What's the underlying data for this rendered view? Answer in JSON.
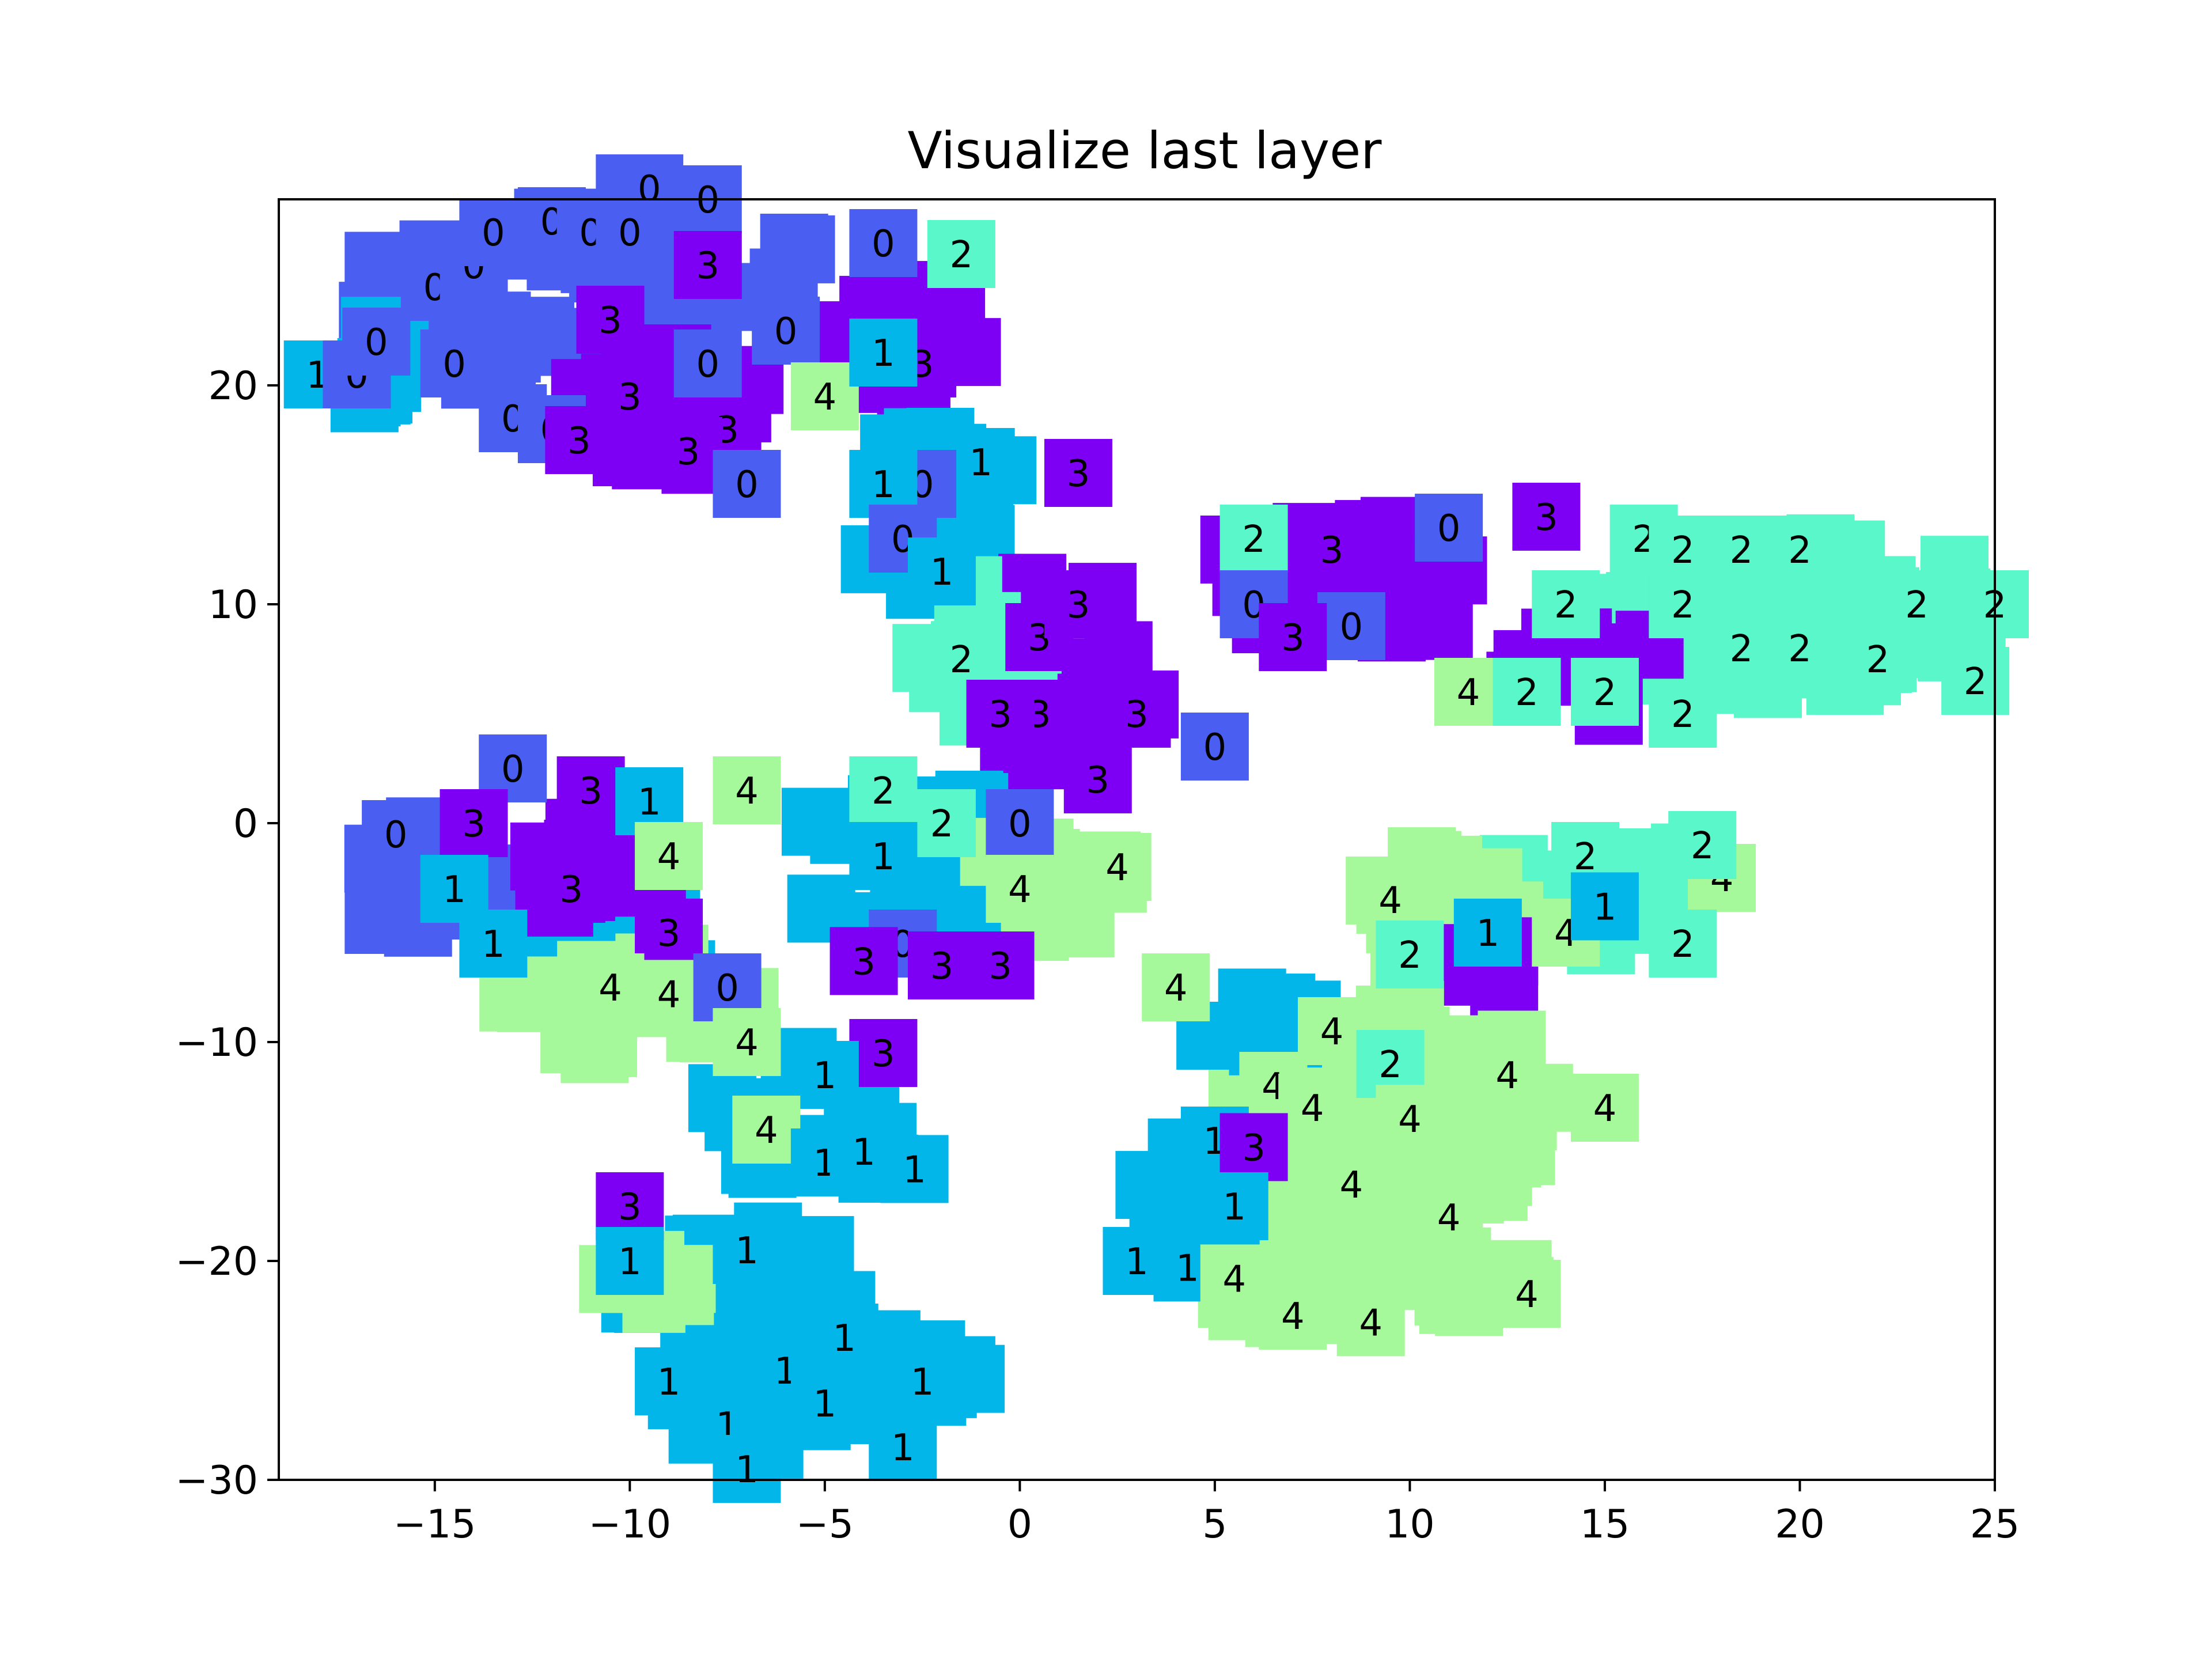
{
  "chart_data": {
    "type": "scatter",
    "title": "Visualize last layer",
    "xlabel": "",
    "ylabel": "",
    "xlim": [
      -19,
      25
    ],
    "ylim": [
      -30,
      28.5
    ],
    "xticks": [
      -15,
      -10,
      -5,
      0,
      5,
      10,
      15,
      20,
      25
    ],
    "yticks": [
      -30,
      -20,
      -10,
      0,
      10,
      20
    ],
    "xtick_labels": [
      "−15",
      "−10",
      "−5",
      "0",
      "5",
      "10",
      "15",
      "20",
      "25"
    ],
    "ytick_labels": [
      "−30",
      "−20",
      "−10",
      "0",
      "10",
      "20"
    ],
    "grid": false,
    "legend": "none",
    "class_colors": {
      "0": "#4a5ef2",
      "1": "#03b6ea",
      "2": "#59f7c9",
      "3": "#7d00f5",
      "4": "#a6f99a"
    },
    "points": [
      {
        "x": -18,
        "y": 20.5,
        "label": "1"
      },
      {
        "x": -17,
        "y": 20.5,
        "label": "0"
      },
      {
        "x": -16.5,
        "y": 22,
        "label": "0"
      },
      {
        "x": -15,
        "y": 24.5,
        "label": "0"
      },
      {
        "x": -14,
        "y": 25.5,
        "label": "0"
      },
      {
        "x": -13.5,
        "y": 27,
        "label": "0"
      },
      {
        "x": -12,
        "y": 27.5,
        "label": "0"
      },
      {
        "x": -11,
        "y": 27,
        "label": "0"
      },
      {
        "x": -10,
        "y": 29,
        "label": "0"
      },
      {
        "x": -9.5,
        "y": 29,
        "label": "0"
      },
      {
        "x": -8,
        "y": 28.5,
        "label": "0"
      },
      {
        "x": -10,
        "y": 27,
        "label": "0"
      },
      {
        "x": -14.5,
        "y": 21,
        "label": "0"
      },
      {
        "x": -13,
        "y": 18.5,
        "label": "0"
      },
      {
        "x": -12,
        "y": 18,
        "label": "0"
      },
      {
        "x": -10.5,
        "y": 23,
        "label": "3"
      },
      {
        "x": -8,
        "y": 25.5,
        "label": "3"
      },
      {
        "x": -10,
        "y": 19.5,
        "label": "3"
      },
      {
        "x": -11.3,
        "y": 17.5,
        "label": "3"
      },
      {
        "x": -7.5,
        "y": 18,
        "label": "3"
      },
      {
        "x": -8.5,
        "y": 17,
        "label": "3"
      },
      {
        "x": -8,
        "y": 21,
        "label": "0"
      },
      {
        "x": -6,
        "y": 22.5,
        "label": "0"
      },
      {
        "x": -7,
        "y": 15.5,
        "label": "0"
      },
      {
        "x": -5,
        "y": 19.5,
        "label": "4"
      },
      {
        "x": -3.5,
        "y": 26.5,
        "label": "0"
      },
      {
        "x": -1.5,
        "y": 26,
        "label": "2"
      },
      {
        "x": -2.5,
        "y": 21,
        "label": "3"
      },
      {
        "x": -3.5,
        "y": 21.5,
        "label": "1"
      },
      {
        "x": -1,
        "y": 16.5,
        "label": "1"
      },
      {
        "x": 1.5,
        "y": 16,
        "label": "3"
      },
      {
        "x": -2.5,
        "y": 15.5,
        "label": "0"
      },
      {
        "x": -3.5,
        "y": 15.5,
        "label": "1"
      },
      {
        "x": -3,
        "y": 13,
        "label": "0"
      },
      {
        "x": -2,
        "y": 11.5,
        "label": "1"
      },
      {
        "x": -1.5,
        "y": 7.5,
        "label": "2"
      },
      {
        "x": 0.5,
        "y": 8.5,
        "label": "3"
      },
      {
        "x": 1.5,
        "y": 10,
        "label": "3"
      },
      {
        "x": 0.5,
        "y": 5,
        "label": "3"
      },
      {
        "x": -0.5,
        "y": 5,
        "label": "3"
      },
      {
        "x": 3,
        "y": 5,
        "label": "3"
      },
      {
        "x": 5,
        "y": 3.5,
        "label": "0"
      },
      {
        "x": 2,
        "y": 2,
        "label": "3"
      },
      {
        "x": 0,
        "y": 0,
        "label": "0"
      },
      {
        "x": 2.5,
        "y": -2,
        "label": "4"
      },
      {
        "x": 0,
        "y": -3,
        "label": "4"
      },
      {
        "x": -3.5,
        "y": 1.5,
        "label": "2"
      },
      {
        "x": -2,
        "y": 0,
        "label": "2"
      },
      {
        "x": -3.5,
        "y": -1.5,
        "label": "1"
      },
      {
        "x": -3,
        "y": -5.5,
        "label": "0"
      },
      {
        "x": -4,
        "y": -6.3,
        "label": "3"
      },
      {
        "x": -2,
        "y": -6.5,
        "label": "3"
      },
      {
        "x": -0.5,
        "y": -6.5,
        "label": "3"
      },
      {
        "x": 5.5,
        "y": 12.5,
        "label": "3"
      },
      {
        "x": 6,
        "y": 13,
        "label": "2"
      },
      {
        "x": 6,
        "y": 10,
        "label": "0"
      },
      {
        "x": 8,
        "y": 12.5,
        "label": "3"
      },
      {
        "x": 8.5,
        "y": 9,
        "label": "0"
      },
      {
        "x": 7,
        "y": 8.5,
        "label": "3"
      },
      {
        "x": 11,
        "y": 13.5,
        "label": "0"
      },
      {
        "x": 13.5,
        "y": 14,
        "label": "3"
      },
      {
        "x": 16,
        "y": 13,
        "label": "2"
      },
      {
        "x": 17,
        "y": 12.5,
        "label": "2"
      },
      {
        "x": 18.5,
        "y": 12.5,
        "label": "2"
      },
      {
        "x": 20,
        "y": 12.5,
        "label": "2"
      },
      {
        "x": 14,
        "y": 10,
        "label": "2"
      },
      {
        "x": 17,
        "y": 10,
        "label": "2"
      },
      {
        "x": 23,
        "y": 10,
        "label": "2"
      },
      {
        "x": 25,
        "y": 10,
        "label": "2"
      },
      {
        "x": 18.5,
        "y": 8,
        "label": "2"
      },
      {
        "x": 20,
        "y": 8,
        "label": "2"
      },
      {
        "x": 22,
        "y": 7.5,
        "label": "2"
      },
      {
        "x": 24.5,
        "y": 6.5,
        "label": "2"
      },
      {
        "x": 11.5,
        "y": 6,
        "label": "4"
      },
      {
        "x": 13,
        "y": 6,
        "label": "2"
      },
      {
        "x": 15,
        "y": 6,
        "label": "2"
      },
      {
        "x": 17,
        "y": 5,
        "label": "2"
      },
      {
        "x": -13,
        "y": 2.5,
        "label": "0"
      },
      {
        "x": -11,
        "y": 1.5,
        "label": "3"
      },
      {
        "x": -9.5,
        "y": 1,
        "label": "1"
      },
      {
        "x": -7,
        "y": 1.5,
        "label": "4"
      },
      {
        "x": -16,
        "y": -0.5,
        "label": "0"
      },
      {
        "x": -14,
        "y": 0,
        "label": "3"
      },
      {
        "x": -9,
        "y": -1.5,
        "label": "4"
      },
      {
        "x": -14.5,
        "y": -3,
        "label": "1"
      },
      {
        "x": -11.5,
        "y": -3,
        "label": "3"
      },
      {
        "x": -9,
        "y": -5,
        "label": "3"
      },
      {
        "x": -13.5,
        "y": -5.5,
        "label": "1"
      },
      {
        "x": -10.5,
        "y": -7.5,
        "label": "4"
      },
      {
        "x": -9,
        "y": -7.8,
        "label": "4"
      },
      {
        "x": -7.5,
        "y": -7.5,
        "label": "0"
      },
      {
        "x": -7,
        "y": -10,
        "label": "4"
      },
      {
        "x": -3.5,
        "y": -10.5,
        "label": "3"
      },
      {
        "x": -5,
        "y": -11.5,
        "label": "1"
      },
      {
        "x": -6.5,
        "y": -14,
        "label": "4"
      },
      {
        "x": -5,
        "y": -15.5,
        "label": "1"
      },
      {
        "x": -4,
        "y": -15,
        "label": "1"
      },
      {
        "x": -2.7,
        "y": -15.8,
        "label": "1"
      },
      {
        "x": -10,
        "y": -17.5,
        "label": "3"
      },
      {
        "x": -10,
        "y": -20,
        "label": "1"
      },
      {
        "x": -7,
        "y": -19.5,
        "label": "1"
      },
      {
        "x": -4.5,
        "y": -23.5,
        "label": "1"
      },
      {
        "x": -6,
        "y": -25,
        "label": "1"
      },
      {
        "x": -9,
        "y": -25.5,
        "label": "1"
      },
      {
        "x": -7.5,
        "y": -27.5,
        "label": "1"
      },
      {
        "x": -5,
        "y": -26.5,
        "label": "1"
      },
      {
        "x": -2.5,
        "y": -25.5,
        "label": "1"
      },
      {
        "x": -3,
        "y": -28.5,
        "label": "1"
      },
      {
        "x": -7,
        "y": -29.5,
        "label": "1"
      },
      {
        "x": 9.5,
        "y": -3.5,
        "label": "4"
      },
      {
        "x": 10,
        "y": -6,
        "label": "2"
      },
      {
        "x": 12,
        "y": -5,
        "label": "1"
      },
      {
        "x": 14,
        "y": -5,
        "label": "4"
      },
      {
        "x": 14.5,
        "y": -1.5,
        "label": "2"
      },
      {
        "x": 15,
        "y": -3.8,
        "label": "1"
      },
      {
        "x": 18,
        "y": -2.5,
        "label": "4"
      },
      {
        "x": 17.5,
        "y": -1,
        "label": "2"
      },
      {
        "x": 17,
        "y": -5.5,
        "label": "2"
      },
      {
        "x": 4,
        "y": -7.5,
        "label": "4"
      },
      {
        "x": 8,
        "y": -9.5,
        "label": "4"
      },
      {
        "x": 9.5,
        "y": -11,
        "label": "2"
      },
      {
        "x": 12.5,
        "y": -11.5,
        "label": "4"
      },
      {
        "x": 15,
        "y": -13,
        "label": "4"
      },
      {
        "x": 6.5,
        "y": -12,
        "label": "4"
      },
      {
        "x": 7.5,
        "y": -13,
        "label": "4"
      },
      {
        "x": 10,
        "y": -13.5,
        "label": "4"
      },
      {
        "x": 5,
        "y": -14.5,
        "label": "1"
      },
      {
        "x": 6,
        "y": -14.8,
        "label": "3"
      },
      {
        "x": 8.5,
        "y": -16.5,
        "label": "4"
      },
      {
        "x": 5.5,
        "y": -17.5,
        "label": "1"
      },
      {
        "x": 11,
        "y": -18,
        "label": "4"
      },
      {
        "x": 3,
        "y": -20,
        "label": "1"
      },
      {
        "x": 4.3,
        "y": -20.3,
        "label": "1"
      },
      {
        "x": 5.5,
        "y": -20.8,
        "label": "4"
      },
      {
        "x": 7,
        "y": -22.5,
        "label": "4"
      },
      {
        "x": 9,
        "y": -22.8,
        "label": "4"
      },
      {
        "x": 13,
        "y": -21.5,
        "label": "4"
      }
    ],
    "background_clusters": [
      {
        "label": "0",
        "cx": -13,
        "cy": 24,
        "rx": 4,
        "ry": 4,
        "n": 24
      },
      {
        "label": "0",
        "cx": -8,
        "cy": 26,
        "rx": 3,
        "ry": 3,
        "n": 20
      },
      {
        "label": "3",
        "cx": -9,
        "cy": 19,
        "rx": 2.5,
        "ry": 2.5,
        "n": 18
      },
      {
        "label": "1",
        "cx": -16,
        "cy": 21,
        "rx": 1.5,
        "ry": 2,
        "n": 8
      },
      {
        "label": "3",
        "cx": -3,
        "cy": 22,
        "rx": 2,
        "ry": 3,
        "n": 14
      },
      {
        "label": "1",
        "cx": -2,
        "cy": 14,
        "rx": 2,
        "ry": 4,
        "n": 14
      },
      {
        "label": "3",
        "cx": 1,
        "cy": 7,
        "rx": 2.5,
        "ry": 4,
        "n": 18
      },
      {
        "label": "2",
        "cx": -1,
        "cy": 8,
        "rx": 1.5,
        "ry": 3,
        "n": 8
      },
      {
        "label": "3",
        "cx": 9,
        "cy": 11,
        "rx": 4,
        "ry": 2.5,
        "n": 20
      },
      {
        "label": "2",
        "cx": 20,
        "cy": 9.5,
        "rx": 5,
        "ry": 3.5,
        "n": 60
      },
      {
        "label": "3",
        "cx": 15,
        "cy": 7,
        "rx": 2.5,
        "ry": 2,
        "n": 10
      },
      {
        "label": "1",
        "cx": -3,
        "cy": -2,
        "rx": 3,
        "ry": 4,
        "n": 20
      },
      {
        "label": "4",
        "cx": 1,
        "cy": -2,
        "rx": 2,
        "ry": 3,
        "n": 12
      },
      {
        "label": "0",
        "cx": -14,
        "cy": -3,
        "rx": 3,
        "ry": 3,
        "n": 16
      },
      {
        "label": "1",
        "cx": -11,
        "cy": -5,
        "rx": 3,
        "ry": 3,
        "n": 18
      },
      {
        "label": "3",
        "cx": -11,
        "cy": -2,
        "rx": 2,
        "ry": 2,
        "n": 10
      },
      {
        "label": "4",
        "cx": -10,
        "cy": -8,
        "rx": 3,
        "ry": 2.5,
        "n": 16
      },
      {
        "label": "1",
        "cx": -5.5,
        "cy": -14,
        "rx": 2.5,
        "ry": 3.5,
        "n": 14
      },
      {
        "label": "1",
        "cx": -7,
        "cy": -21,
        "rx": 3,
        "ry": 3,
        "n": 22
      },
      {
        "label": "4",
        "cx": -9.5,
        "cy": -20.5,
        "rx": 1,
        "ry": 2,
        "n": 6
      },
      {
        "label": "1",
        "cx": -5,
        "cy": -26,
        "rx": 4,
        "ry": 3,
        "n": 34
      },
      {
        "label": "2",
        "cx": 15,
        "cy": -3,
        "rx": 3,
        "ry": 2.5,
        "n": 18
      },
      {
        "label": "4",
        "cx": 11,
        "cy": -4,
        "rx": 2.5,
        "ry": 2.5,
        "n": 14
      },
      {
        "label": "3",
        "cx": 12,
        "cy": -7,
        "rx": 1.5,
        "ry": 1.5,
        "n": 6
      },
      {
        "label": "4",
        "cx": 9,
        "cy": -14,
        "rx": 4,
        "ry": 5.5,
        "n": 70
      },
      {
        "label": "4",
        "cx": 12,
        "cy": -12,
        "rx": 2.5,
        "ry": 2,
        "n": 14
      },
      {
        "label": "1",
        "cx": 6,
        "cy": -9,
        "rx": 1.5,
        "ry": 1.5,
        "n": 8
      },
      {
        "label": "4",
        "cx": 9,
        "cy": -21,
        "rx": 4,
        "ry": 2,
        "n": 30
      },
      {
        "label": "1",
        "cx": 4.5,
        "cy": -17.5,
        "rx": 1.5,
        "ry": 3,
        "n": 8
      }
    ]
  }
}
